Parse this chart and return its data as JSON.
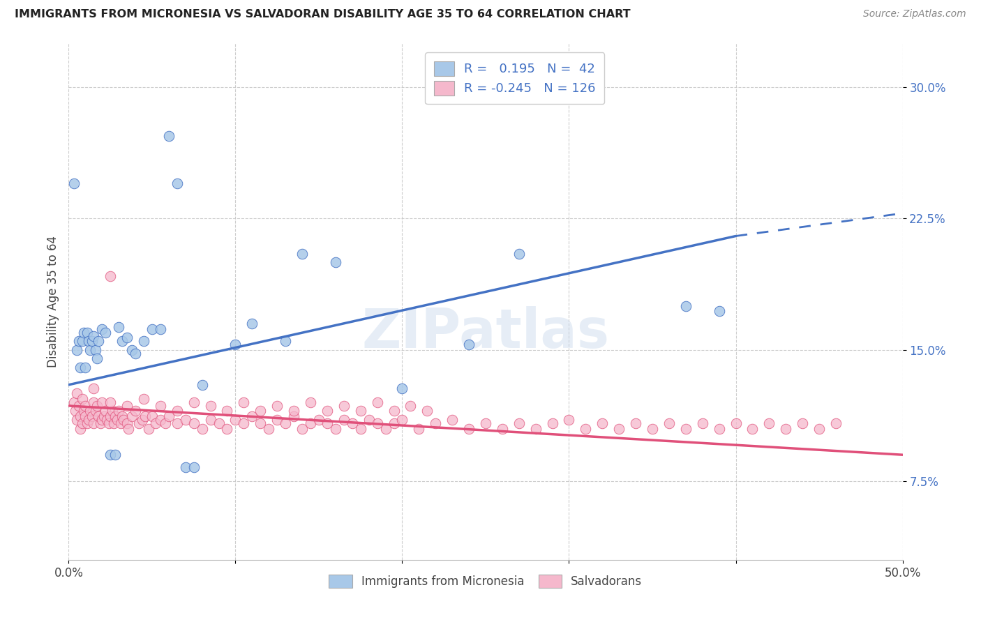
{
  "title": "IMMIGRANTS FROM MICRONESIA VS SALVADORAN DISABILITY AGE 35 TO 64 CORRELATION CHART",
  "source": "Source: ZipAtlas.com",
  "ylabel": "Disability Age 35 to 64",
  "xlim": [
    0.0,
    0.5
  ],
  "ylim": [
    0.03,
    0.325
  ],
  "xticks": [
    0.0,
    0.1,
    0.2,
    0.3,
    0.4,
    0.5
  ],
  "xticklabels": [
    "0.0%",
    "",
    "",
    "",
    "",
    "50.0%"
  ],
  "yticks": [
    0.075,
    0.15,
    0.225,
    0.3
  ],
  "yticklabels": [
    "7.5%",
    "15.0%",
    "22.5%",
    "30.0%"
  ],
  "R1": 0.195,
  "N1": 42,
  "R2": -0.245,
  "N2": 126,
  "micronesia_color": "#a8c8e8",
  "salvadoran_color": "#f5b8cc",
  "line1_color": "#4472c4",
  "line2_color": "#e0507a",
  "background_color": "#ffffff",
  "grid_color": "#c8c8c8",
  "legend_text_color": "#4472c4",
  "title_color": "#222222",
  "source_color": "#888888",
  "ylabel_color": "#444444",
  "blue_line_start_y": 0.13,
  "blue_line_end_y": 0.215,
  "blue_line_dash_end_y": 0.228,
  "pink_line_start_y": 0.118,
  "pink_line_end_y": 0.09,
  "micronesia_x": [
    0.003,
    0.005,
    0.006,
    0.007,
    0.008,
    0.009,
    0.01,
    0.011,
    0.012,
    0.013,
    0.014,
    0.015,
    0.016,
    0.017,
    0.018,
    0.02,
    0.022,
    0.025,
    0.028,
    0.03,
    0.032,
    0.035,
    0.038,
    0.04,
    0.045,
    0.05,
    0.055,
    0.06,
    0.065,
    0.07,
    0.075,
    0.08,
    0.1,
    0.11,
    0.13,
    0.14,
    0.16,
    0.2,
    0.24,
    0.27,
    0.37,
    0.39
  ],
  "micronesia_y": [
    0.245,
    0.15,
    0.155,
    0.14,
    0.155,
    0.16,
    0.14,
    0.16,
    0.155,
    0.15,
    0.155,
    0.158,
    0.15,
    0.145,
    0.155,
    0.162,
    0.16,
    0.09,
    0.09,
    0.163,
    0.155,
    0.157,
    0.15,
    0.148,
    0.155,
    0.162,
    0.162,
    0.272,
    0.245,
    0.083,
    0.083,
    0.13,
    0.153,
    0.165,
    0.155,
    0.205,
    0.2,
    0.128,
    0.153,
    0.205,
    0.175,
    0.172
  ],
  "salvadoran_x": [
    0.003,
    0.004,
    0.005,
    0.005,
    0.006,
    0.007,
    0.007,
    0.008,
    0.008,
    0.009,
    0.01,
    0.01,
    0.011,
    0.012,
    0.013,
    0.014,
    0.015,
    0.015,
    0.016,
    0.017,
    0.018,
    0.019,
    0.02,
    0.02,
    0.021,
    0.022,
    0.023,
    0.024,
    0.025,
    0.026,
    0.027,
    0.028,
    0.029,
    0.03,
    0.031,
    0.032,
    0.033,
    0.035,
    0.036,
    0.038,
    0.04,
    0.042,
    0.044,
    0.046,
    0.048,
    0.05,
    0.052,
    0.055,
    0.058,
    0.06,
    0.065,
    0.07,
    0.075,
    0.08,
    0.085,
    0.09,
    0.095,
    0.1,
    0.105,
    0.11,
    0.115,
    0.12,
    0.125,
    0.13,
    0.135,
    0.14,
    0.145,
    0.15,
    0.155,
    0.16,
    0.165,
    0.17,
    0.175,
    0.18,
    0.185,
    0.19,
    0.195,
    0.2,
    0.21,
    0.22,
    0.23,
    0.24,
    0.25,
    0.26,
    0.27,
    0.28,
    0.29,
    0.3,
    0.31,
    0.32,
    0.33,
    0.34,
    0.35,
    0.36,
    0.37,
    0.38,
    0.39,
    0.4,
    0.41,
    0.42,
    0.43,
    0.44,
    0.45,
    0.46,
    0.015,
    0.025,
    0.035,
    0.045,
    0.055,
    0.065,
    0.075,
    0.085,
    0.095,
    0.105,
    0.115,
    0.125,
    0.135,
    0.145,
    0.155,
    0.165,
    0.175,
    0.185,
    0.195,
    0.205,
    0.215,
    0.025
  ],
  "salvadoran_y": [
    0.12,
    0.115,
    0.125,
    0.11,
    0.118,
    0.112,
    0.105,
    0.108,
    0.122,
    0.115,
    0.118,
    0.112,
    0.108,
    0.11,
    0.115,
    0.112,
    0.108,
    0.12,
    0.115,
    0.118,
    0.112,
    0.108,
    0.11,
    0.12,
    0.112,
    0.115,
    0.11,
    0.108,
    0.112,
    0.115,
    0.108,
    0.112,
    0.11,
    0.115,
    0.108,
    0.112,
    0.11,
    0.108,
    0.105,
    0.112,
    0.115,
    0.108,
    0.11,
    0.112,
    0.105,
    0.112,
    0.108,
    0.11,
    0.108,
    0.112,
    0.108,
    0.11,
    0.108,
    0.105,
    0.11,
    0.108,
    0.105,
    0.11,
    0.108,
    0.112,
    0.108,
    0.105,
    0.11,
    0.108,
    0.112,
    0.105,
    0.108,
    0.11,
    0.108,
    0.105,
    0.11,
    0.108,
    0.105,
    0.11,
    0.108,
    0.105,
    0.108,
    0.11,
    0.105,
    0.108,
    0.11,
    0.105,
    0.108,
    0.105,
    0.108,
    0.105,
    0.108,
    0.11,
    0.105,
    0.108,
    0.105,
    0.108,
    0.105,
    0.108,
    0.105,
    0.108,
    0.105,
    0.108,
    0.105,
    0.108,
    0.105,
    0.108,
    0.105,
    0.108,
    0.128,
    0.12,
    0.118,
    0.122,
    0.118,
    0.115,
    0.12,
    0.118,
    0.115,
    0.12,
    0.115,
    0.118,
    0.115,
    0.12,
    0.115,
    0.118,
    0.115,
    0.12,
    0.115,
    0.118,
    0.115,
    0.192
  ]
}
